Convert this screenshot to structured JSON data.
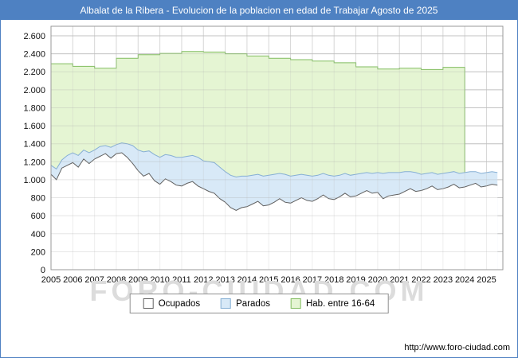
{
  "title": "Albalat de la Ribera - Evolucion de la poblacion en edad de Trabajar Agosto de 2025",
  "watermark": "FORO-CIUDAD.COM",
  "footer": {
    "url": "http://www.foro-ciudad.com"
  },
  "chart_data": {
    "type": "area",
    "title": "Albalat de la Ribera - Evolucion de la poblacion en edad de Trabajar Agosto de 2025",
    "xlabel": "",
    "ylabel": "",
    "ylim": [
      0,
      2600
    ],
    "grid": true,
    "legend_position": "bottom",
    "yticks": [
      "0",
      "200",
      "400",
      "600",
      "800",
      "1.000",
      "1.200",
      "1.400",
      "1.600",
      "1.800",
      "2.000",
      "2.200",
      "2.400",
      "2.600"
    ],
    "x_labels": [
      "2005",
      "2006",
      "2007",
      "2008",
      "2009",
      "2010",
      "2011",
      "2012",
      "2013",
      "2014",
      "2015",
      "2016",
      "2017",
      "2018",
      "2019",
      "2020",
      "2021",
      "2022",
      "2023",
      "2024",
      "2025"
    ],
    "x": [
      2005,
      2005.25,
      2005.5,
      2005.75,
      2006,
      2006.25,
      2006.5,
      2006.75,
      2007,
      2007.25,
      2007.5,
      2007.75,
      2008,
      2008.25,
      2008.5,
      2008.75,
      2009,
      2009.25,
      2009.5,
      2009.75,
      2010,
      2010.25,
      2010.5,
      2010.75,
      2011,
      2011.25,
      2011.5,
      2011.75,
      2012,
      2012.25,
      2012.5,
      2012.75,
      2013,
      2013.25,
      2013.5,
      2013.75,
      2014,
      2014.25,
      2014.5,
      2014.75,
      2015,
      2015.25,
      2015.5,
      2015.75,
      2016,
      2016.25,
      2016.5,
      2016.75,
      2017,
      2017.25,
      2017.5,
      2017.75,
      2018,
      2018.25,
      2018.5,
      2018.75,
      2019,
      2019.25,
      2019.5,
      2019.75,
      2020,
      2020.25,
      2020.5,
      2020.75,
      2021,
      2021.25,
      2021.5,
      2021.75,
      2022,
      2022.25,
      2022.5,
      2022.75,
      2023,
      2023.25,
      2023.5,
      2023.75,
      2024,
      2024.25,
      2024.5,
      2024.75,
      2025,
      2025.25,
      2025.5
    ],
    "series": [
      {
        "name": "Ocupados",
        "fill": "#ffffff",
        "stroke": "#606060",
        "values": [
          1060,
          1000,
          1130,
          1160,
          1190,
          1140,
          1230,
          1180,
          1230,
          1260,
          1290,
          1240,
          1290,
          1300,
          1250,
          1180,
          1100,
          1040,
          1070,
          990,
          950,
          1010,
          980,
          940,
          930,
          960,
          980,
          930,
          900,
          870,
          850,
          790,
          750,
          690,
          660,
          690,
          700,
          730,
          760,
          710,
          720,
          750,
          790,
          750,
          740,
          770,
          800,
          770,
          760,
          790,
          830,
          790,
          780,
          810,
          850,
          810,
          820,
          850,
          880,
          850,
          860,
          790,
          820,
          830,
          840,
          870,
          900,
          870,
          880,
          900,
          930,
          890,
          900,
          920,
          950,
          910,
          920,
          940,
          960,
          920,
          930,
          950,
          940
        ]
      },
      {
        "name": "Parados",
        "fill": "#d8e9f7",
        "stroke": "#86afd4",
        "stacked_on": "Ocupados",
        "values": [
          100,
          120,
          90,
          110,
          110,
          130,
          100,
          120,
          100,
          110,
          90,
          120,
          100,
          110,
          150,
          200,
          230,
          270,
          250,
          290,
          300,
          270,
          290,
          310,
          320,
          300,
          290,
          320,
          310,
          330,
          340,
          350,
          340,
          360,
          370,
          350,
          340,
          320,
          300,
          330,
          330,
          310,
          280,
          310,
          300,
          280,
          260,
          280,
          280,
          260,
          240,
          260,
          260,
          240,
          220,
          240,
          240,
          220,
          200,
          220,
          220,
          280,
          260,
          250,
          240,
          220,
          190,
          210,
          180,
          170,
          150,
          170,
          170,
          160,
          140,
          160,
          160,
          150,
          130,
          150,
          150,
          140,
          140
        ]
      },
      {
        "name": "Hab. entre 16-64",
        "fill": "#e5f5d3",
        "stroke": "#82bd60",
        "stepped": true,
        "values": [
          2290,
          2290,
          2290,
          2290,
          2260,
          2260,
          2260,
          2260,
          2240,
          2240,
          2240,
          2240,
          2350,
          2350,
          2350,
          2350,
          2390,
          2390,
          2390,
          2390,
          2405,
          2405,
          2405,
          2405,
          2425,
          2425,
          2425,
          2425,
          2420,
          2420,
          2420,
          2420,
          2400,
          2400,
          2400,
          2400,
          2375,
          2375,
          2375,
          2375,
          2350,
          2350,
          2350,
          2350,
          2335,
          2335,
          2335,
          2335,
          2320,
          2320,
          2320,
          2320,
          2300,
          2300,
          2300,
          2300,
          2255,
          2255,
          2255,
          2255,
          2230,
          2230,
          2230,
          2230,
          2240,
          2240,
          2240,
          2240,
          2225,
          2225,
          2225,
          2225,
          2250,
          2250,
          2250,
          2250,
          2235,
          null,
          null,
          null,
          null,
          null,
          null
        ]
      }
    ]
  }
}
